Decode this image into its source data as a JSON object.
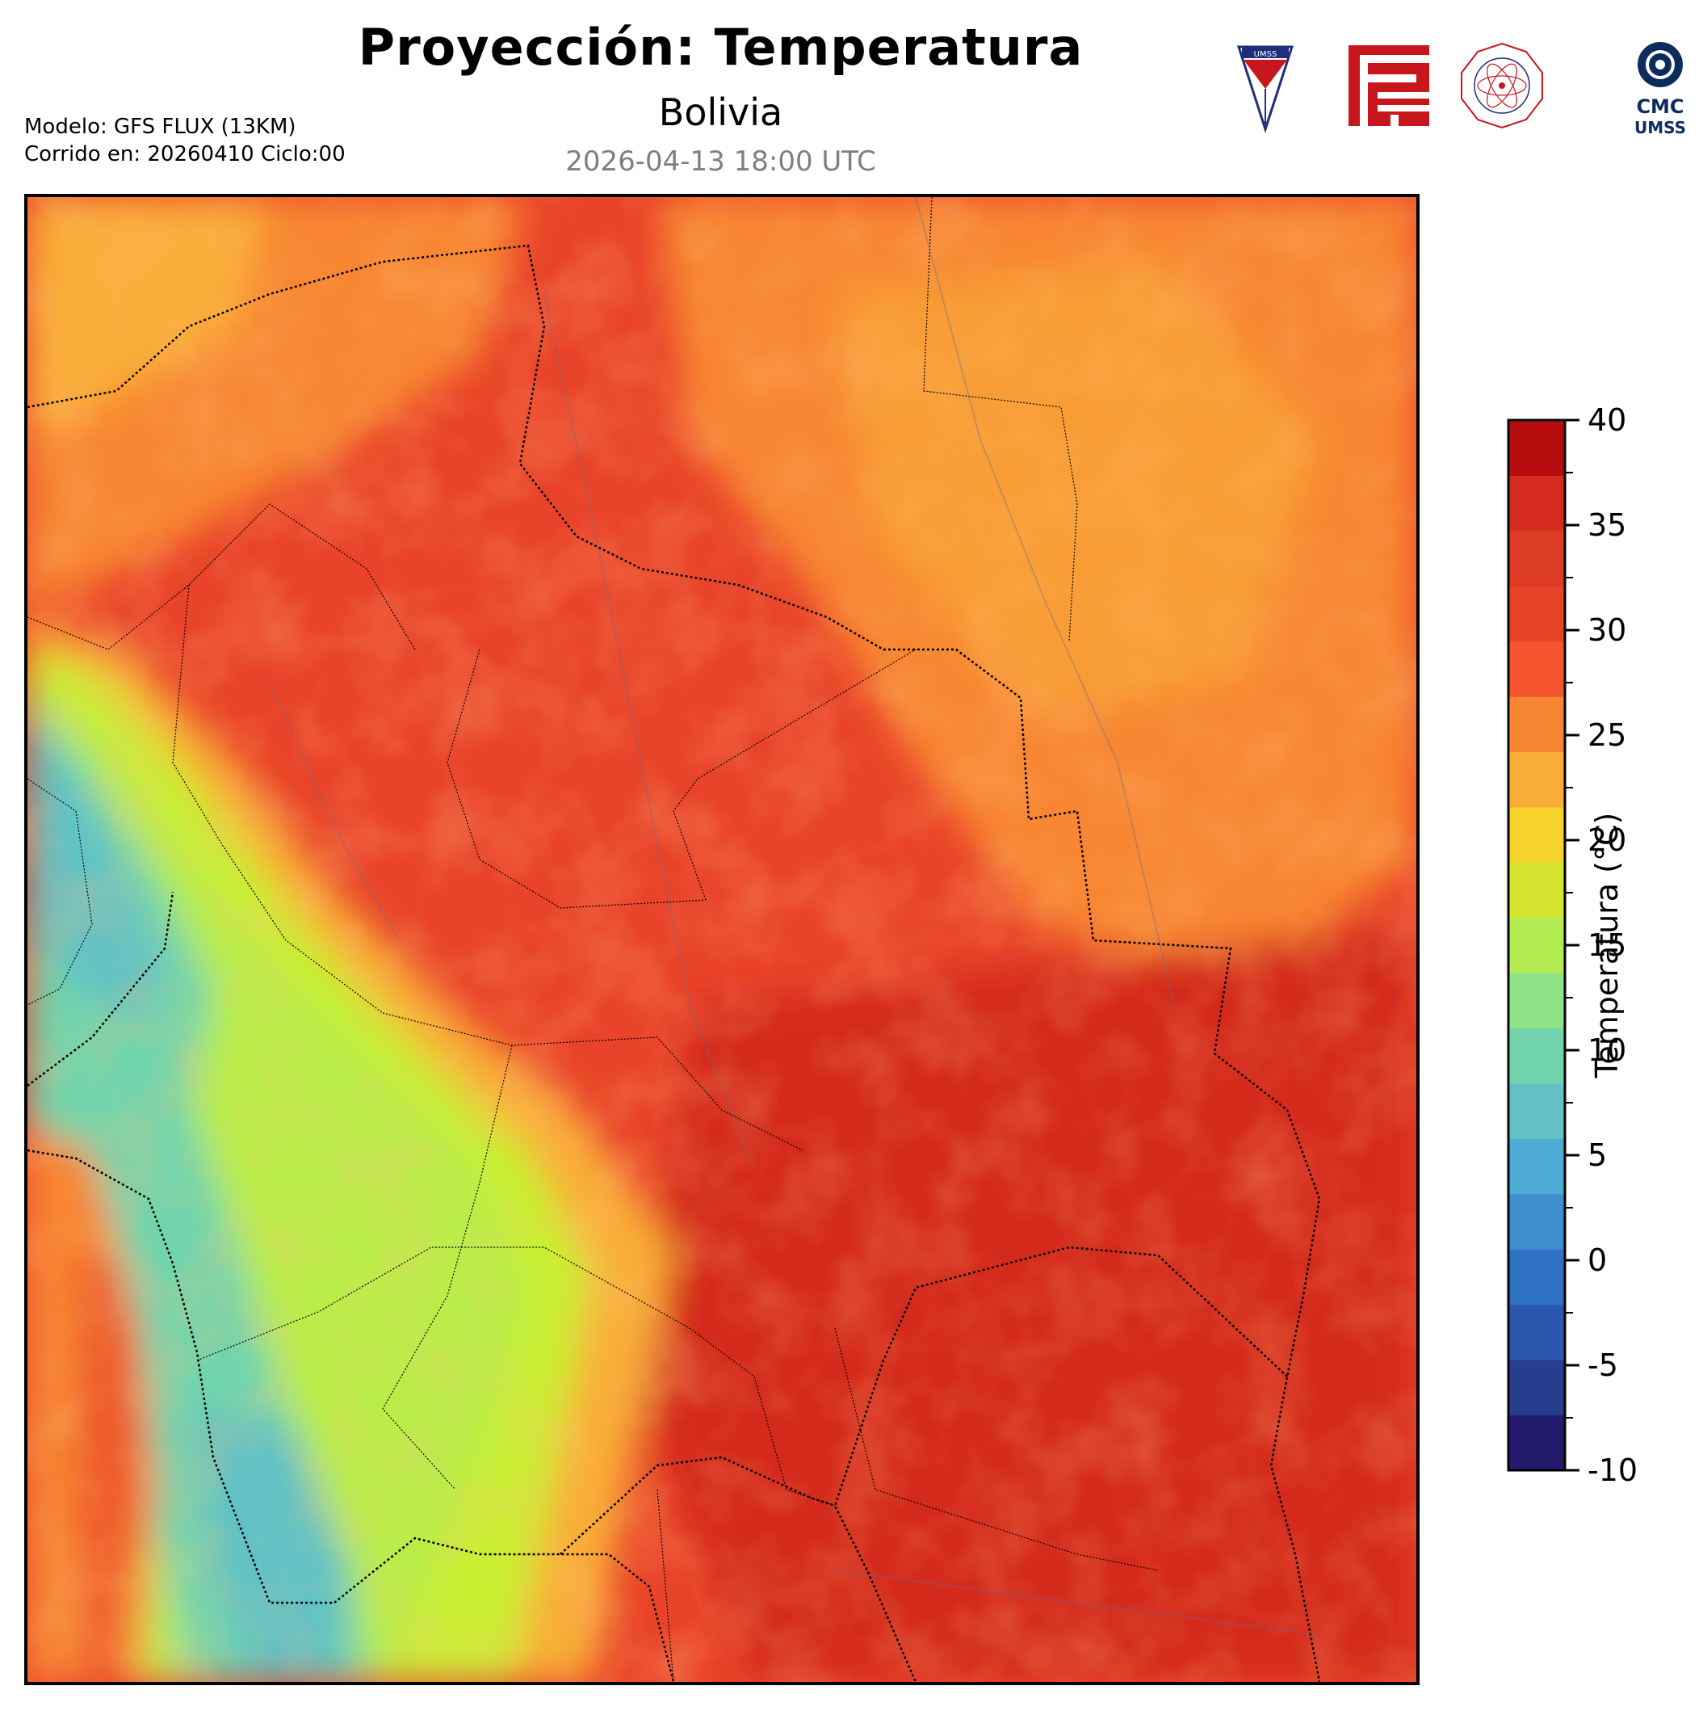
{
  "header": {
    "title": "Proyección: Temperatura",
    "subtitle": "Bolivia",
    "datetime": "2026-04-13 18:00 UTC",
    "model_line": "Modelo: GFS FLUX (13KM)",
    "run_line": "Corrido en: 20260410 Ciclo:00"
  },
  "logos": [
    {
      "name": "umss-shield-logo",
      "text": "UMSS"
    },
    {
      "name": "red-geometric-logo",
      "text": ""
    },
    {
      "name": "departamento-fisica-seal-logo",
      "text": "DEPARTAMENTO DE FÍSICA"
    },
    {
      "name": "cmc-umss-logo",
      "text": "CMC UMSS"
    }
  ],
  "colorbar": {
    "label": "Temperatura (°C)",
    "min": -10,
    "max": 40,
    "step": 2.5,
    "ticks": [
      "40",
      "35",
      "30",
      "25",
      "20",
      "15",
      "10",
      "5",
      "0",
      "-5",
      "-10"
    ],
    "colors": [
      "#241a6e",
      "#273e8f",
      "#2958ae",
      "#2f72c4",
      "#3f8fce",
      "#4eabd4",
      "#62c1c4",
      "#72d4ac",
      "#8ee386",
      "#b3ec52",
      "#d5e331",
      "#f6d22a",
      "#f9ad38",
      "#f88632",
      "#f4532e",
      "#e9442a",
      "#dc3c24",
      "#d42b1e",
      "#b70d0e"
    ]
  },
  "map": {
    "region": "Bolivia",
    "colors": {
      "hot": "#e9442a",
      "warm": "#f88632",
      "mild": "#f9ad38",
      "cool": "#c9ef33",
      "cold": "#62c1c4"
    }
  }
}
